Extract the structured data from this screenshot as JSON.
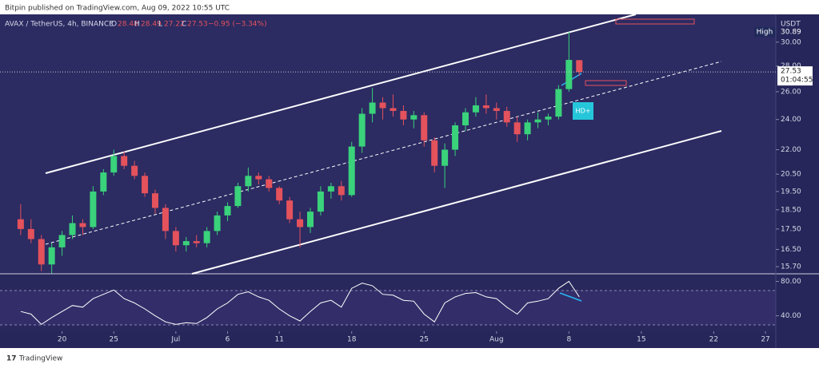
{
  "header": {
    "publisher": "Bitpin published on TradingView.com, Aug 09, 2022 10:55 UTC"
  },
  "footer": {
    "brand": "TradingView"
  },
  "chart_data": {
    "type": "candlestick",
    "symbol": "AVAX / TetherUS, 4h, BINANCE",
    "ohlc_labels": {
      "o": "O",
      "open": "28.48",
      "h": "H",
      "high": "28.49",
      "l": "L",
      "low": "27.22",
      "c": "C",
      "close": "27.53",
      "change": "−0.95 (−3.34%)"
    },
    "currency": "USDT",
    "high_label": "High",
    "high_value_label": "30.89",
    "last_price_label": "27.53",
    "countdown": "01:04:55",
    "annotation": "HD+",
    "x": [
      "2022-06-16",
      "2022-06-17",
      "2022-06-18",
      "2022-06-19",
      "2022-06-20",
      "2022-06-21",
      "2022-06-22",
      "2022-06-23",
      "2022-06-24",
      "2022-06-25",
      "2022-06-26",
      "2022-06-27",
      "2022-06-28",
      "2022-06-29",
      "2022-06-30",
      "2022-07-01",
      "2022-07-02",
      "2022-07-03",
      "2022-07-04",
      "2022-07-05",
      "2022-07-06",
      "2022-07-07",
      "2022-07-08",
      "2022-07-09",
      "2022-07-10",
      "2022-07-11",
      "2022-07-12",
      "2022-07-13",
      "2022-07-14",
      "2022-07-15",
      "2022-07-16",
      "2022-07-17",
      "2022-07-18",
      "2022-07-19",
      "2022-07-20",
      "2022-07-21",
      "2022-07-22",
      "2022-07-23",
      "2022-07-24",
      "2022-07-25",
      "2022-07-26",
      "2022-07-27",
      "2022-07-28",
      "2022-07-29",
      "2022-07-30",
      "2022-07-31",
      "2022-08-01",
      "2022-08-02",
      "2022-08-03",
      "2022-08-04",
      "2022-08-05",
      "2022-08-06",
      "2022-08-07",
      "2022-08-08",
      "2022-08-09"
    ],
    "open": [
      18.0,
      17.5,
      17.0,
      15.8,
      16.6,
      17.2,
      17.8,
      17.6,
      19.5,
      20.6,
      21.6,
      21.0,
      20.4,
      19.4,
      18.6,
      17.4,
      16.7,
      16.9,
      16.8,
      17.4,
      18.2,
      18.7,
      19.8,
      20.4,
      20.2,
      19.7,
      19.0,
      18.0,
      17.6,
      18.4,
      19.5,
      19.8,
      19.3,
      22.2,
      24.4,
      25.2,
      24.8,
      24.6,
      24.0,
      24.3,
      22.6,
      21.0,
      22.0,
      23.6,
      24.5,
      25.0,
      24.8,
      24.6,
      23.8,
      23.0,
      23.8,
      24.0,
      24.2,
      26.2,
      28.48
    ],
    "high": [
      18.8,
      18.0,
      17.2,
      16.8,
      17.4,
      18.2,
      18.0,
      19.8,
      20.8,
      22.0,
      21.9,
      21.3,
      20.6,
      19.6,
      18.8,
      17.6,
      17.1,
      17.2,
      17.6,
      18.4,
      18.9,
      20.0,
      20.9,
      20.6,
      20.4,
      19.8,
      19.2,
      18.4,
      18.6,
      19.8,
      20.0,
      20.1,
      22.5,
      24.8,
      26.3,
      25.6,
      25.8,
      25.0,
      24.6,
      24.5,
      22.8,
      22.4,
      23.8,
      24.8,
      25.6,
      25.8,
      25.2,
      24.9,
      24.2,
      24.0,
      24.5,
      24.4,
      26.5,
      30.89,
      28.49
    ],
    "low": [
      17.2,
      16.8,
      15.5,
      15.4,
      16.2,
      17.0,
      17.2,
      17.5,
      19.3,
      20.4,
      20.8,
      20.2,
      19.2,
      18.3,
      17.0,
      16.4,
      16.4,
      16.6,
      16.6,
      17.2,
      17.9,
      18.6,
      19.5,
      19.9,
      19.5,
      18.8,
      17.8,
      16.6,
      17.3,
      18.2,
      19.1,
      19.0,
      19.2,
      21.8,
      23.8,
      24.0,
      24.2,
      23.6,
      23.4,
      22.2,
      20.6,
      19.7,
      21.6,
      23.2,
      24.2,
      24.4,
      24.0,
      23.5,
      22.5,
      22.6,
      23.4,
      23.6,
      24.0,
      26.0,
      27.22
    ],
    "close": [
      17.5,
      17.0,
      15.8,
      16.6,
      17.2,
      17.8,
      17.6,
      19.5,
      20.6,
      21.6,
      21.0,
      20.4,
      19.4,
      18.6,
      17.4,
      16.7,
      16.9,
      16.8,
      17.4,
      18.2,
      18.7,
      19.8,
      20.4,
      20.2,
      19.7,
      19.0,
      18.0,
      17.6,
      18.4,
      19.5,
      19.8,
      19.3,
      22.2,
      24.4,
      25.2,
      24.8,
      24.6,
      24.0,
      24.3,
      22.6,
      21.0,
      22.0,
      23.6,
      24.5,
      25.0,
      24.8,
      24.6,
      23.8,
      23.0,
      23.8,
      24.0,
      24.2,
      26.2,
      28.5,
      27.53
    ],
    "up_color": "#3ad27b",
    "down_color": "#e4525c",
    "log_scale": true,
    "xlim": [
      "2022-06-14",
      "2022-08-28"
    ],
    "xticks": [
      {
        "value": "2022-06-20",
        "label": "20"
      },
      {
        "value": "2022-06-25",
        "label": "25"
      },
      {
        "value": "2022-07-01",
        "label": "Jul"
      },
      {
        "value": "2022-07-06",
        "label": "6"
      },
      {
        "value": "2022-07-11",
        "label": "11"
      },
      {
        "value": "2022-07-18",
        "label": "18"
      },
      {
        "value": "2022-07-25",
        "label": "25"
      },
      {
        "value": "2022-08-01",
        "label": "Aug"
      },
      {
        "value": "2022-08-08",
        "label": "8"
      },
      {
        "value": "2022-08-15",
        "label": "15"
      },
      {
        "value": "2022-08-22",
        "label": "22"
      },
      {
        "value": "2022-08-27",
        "label": "27"
      }
    ],
    "ylim": [
      15.38,
      32.5
    ],
    "yticks": [
      {
        "value": 15.7,
        "label": "15.70"
      },
      {
        "value": 16.5,
        "label": "16.50"
      },
      {
        "value": 17.5,
        "label": "17.50"
      },
      {
        "value": 18.5,
        "label": "18.50"
      },
      {
        "value": 19.5,
        "label": "19.50"
      },
      {
        "value": 20.5,
        "label": "20.50"
      },
      {
        "value": 22,
        "label": "22.00"
      },
      {
        "value": 24,
        "label": "24.00"
      },
      {
        "value": 26,
        "label": "26.00"
      },
      {
        "value": 28,
        "label": "28.00"
      },
      {
        "value": 30,
        "label": "30.00"
      }
    ],
    "rsi_values": [
      45,
      42,
      30,
      38,
      45,
      52,
      50,
      60,
      65,
      70,
      60,
      55,
      48,
      40,
      33,
      30,
      32,
      31,
      38,
      48,
      55,
      65,
      68,
      62,
      58,
      48,
      40,
      34,
      45,
      55,
      58,
      50,
      72,
      78,
      75,
      65,
      64,
      58,
      57,
      42,
      33,
      55,
      62,
      66,
      67,
      62,
      60,
      50,
      42,
      55,
      57,
      60,
      72,
      80,
      62
    ],
    "rsi_color": "#ffffff",
    "rsi_ylim": [
      22,
      87
    ],
    "rsi_yticks": [
      {
        "value": 40,
        "label": "40.00"
      },
      {
        "value": 80,
        "label": "80.00"
      }
    ]
  }
}
